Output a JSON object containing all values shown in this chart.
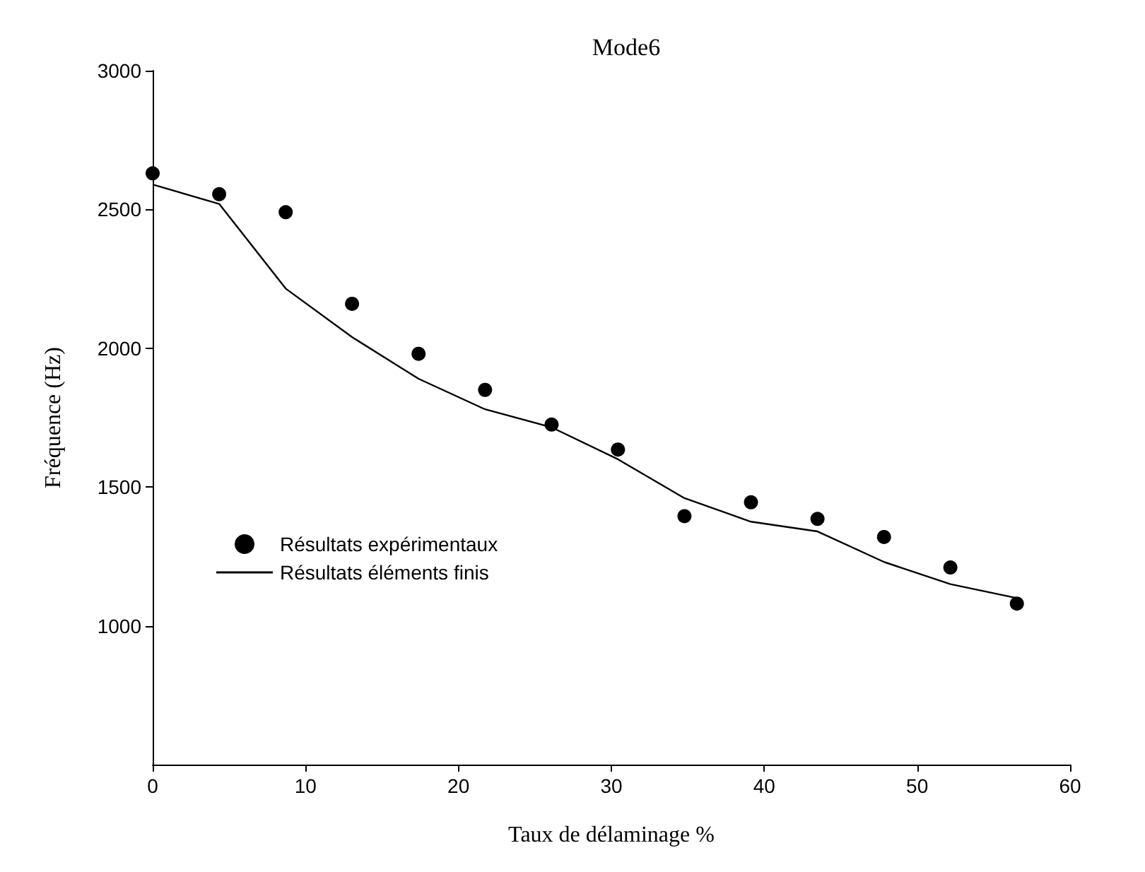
{
  "chart_data": {
    "type": "scatter",
    "title": "Mode6",
    "xlabel": "Taux de délaminage %",
    "ylabel": "Fréquence (Hz)",
    "x": [
      0,
      4.35,
      8.7,
      13.04,
      17.39,
      21.74,
      26.09,
      30.43,
      34.78,
      39.13,
      43.48,
      47.83,
      52.17,
      56.52
    ],
    "series": [
      {
        "name": "Résultats expérimentaux",
        "color": "#000000",
        "marker": "circle",
        "values": [
          2630,
          2555,
          2490,
          2160,
          1980,
          1850,
          1725,
          1635,
          1395,
          1445,
          1385,
          1320,
          1210,
          1080
        ]
      },
      {
        "name": "Résultats éléments finis",
        "type": "line",
        "color": "#000000",
        "marker": "none",
        "values": [
          2590,
          2520,
          2215,
          2040,
          1890,
          1780,
          1715,
          1600,
          1460,
          1375,
          1340,
          1230,
          1150,
          1100
        ]
      }
    ],
    "xlim": [
      0,
      60
    ],
    "xticks": [
      0,
      10,
      20,
      30,
      40,
      50,
      60
    ],
    "ylim": [
      500,
      3000
    ],
    "yticks": [
      1000,
      1500,
      2000,
      2500,
      3000
    ],
    "grid": false,
    "legend": "left"
  }
}
